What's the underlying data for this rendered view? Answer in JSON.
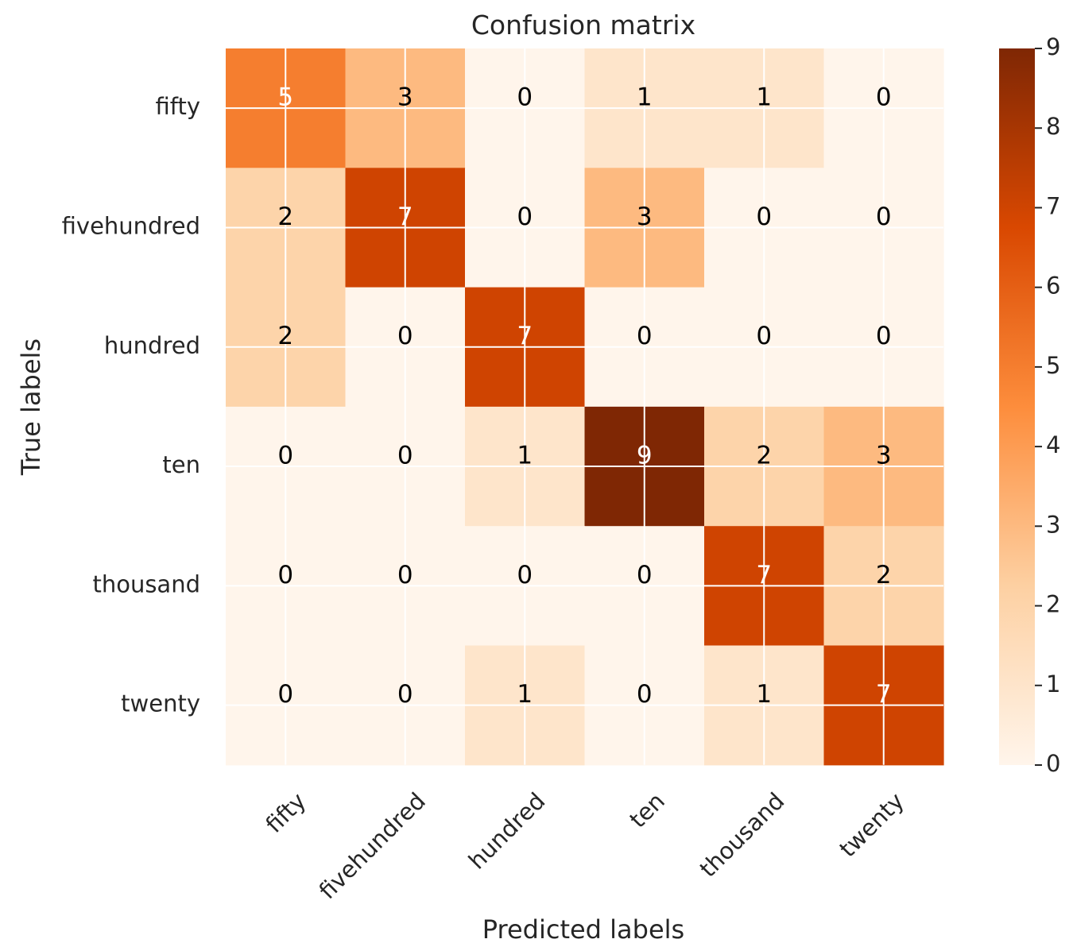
{
  "chart_data": {
    "type": "heatmap",
    "title": "Confusion matrix",
    "xlabel": "Predicted labels",
    "ylabel": "True labels",
    "x_categories": [
      "fifty",
      "fivehundred",
      "hundred",
      "ten",
      "thousand",
      "twenty"
    ],
    "y_categories": [
      "fifty",
      "fivehundred",
      "hundred",
      "ten",
      "thousand",
      "twenty"
    ],
    "values": [
      [
        5,
        3,
        0,
        1,
        1,
        0
      ],
      [
        2,
        7,
        0,
        3,
        0,
        0
      ],
      [
        2,
        0,
        7,
        0,
        0,
        0
      ],
      [
        0,
        0,
        1,
        9,
        2,
        3
      ],
      [
        0,
        0,
        0,
        0,
        7,
        2
      ],
      [
        0,
        0,
        1,
        0,
        1,
        7
      ]
    ],
    "colorbar": {
      "min": 0,
      "max": 9,
      "ticks": [
        "0",
        "1",
        "2",
        "3",
        "4",
        "5",
        "6",
        "7",
        "8",
        "9"
      ],
      "colormap": [
        "#fff5eb",
        "#fdd0a2",
        "#fd8d3c",
        "#d94801",
        "#7f2704"
      ]
    },
    "grid": true,
    "text_color_dark": "#000000",
    "text_color_light": "#ffffff"
  }
}
